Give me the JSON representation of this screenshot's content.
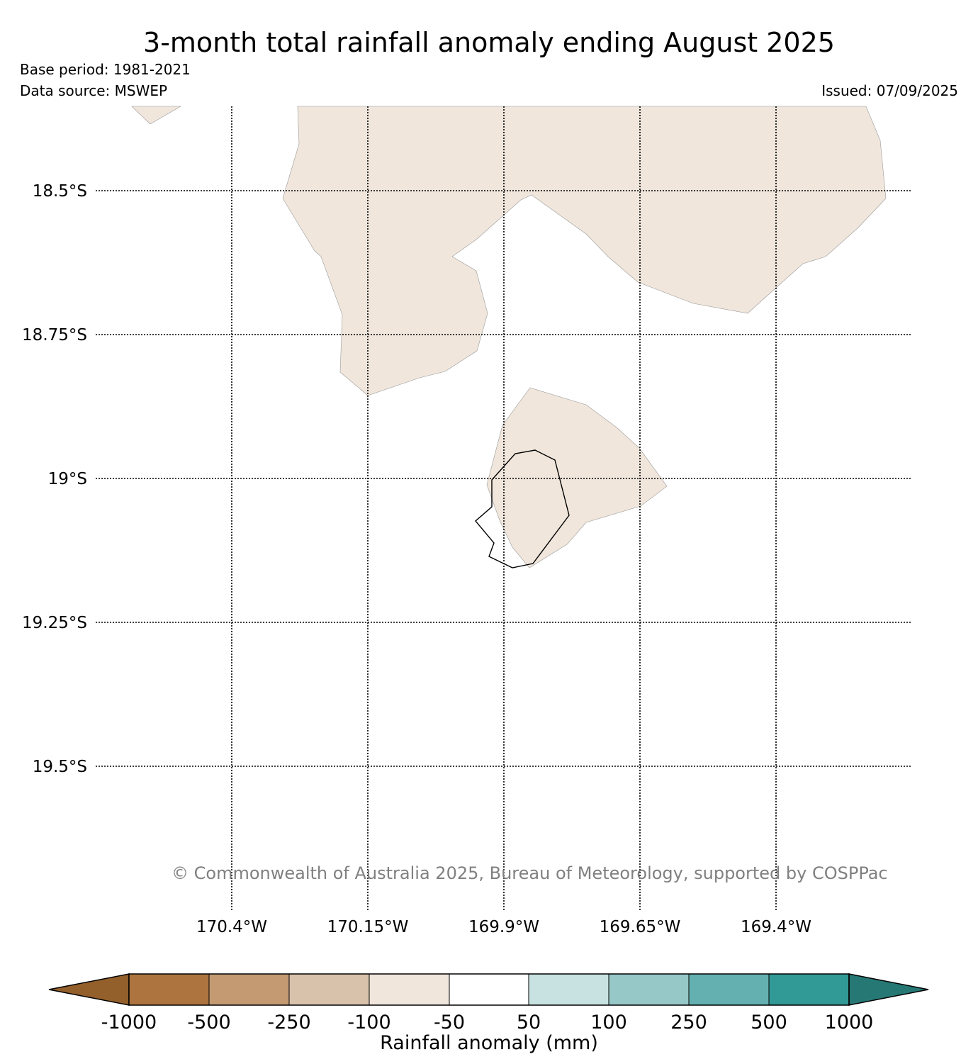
{
  "title": "3-month total rainfall anomaly ending August 2025",
  "base_period": "Base period: 1981-2021",
  "data_source": "Data source: MSWEP",
  "issued": "Issued: 07/09/2025",
  "copyright": "© Commonwealth of Australia 2025, Bureau of Meteorology, supported by COSPPac",
  "map": {
    "lat_labels": [
      "18.5°S",
      "18.75°S",
      "19°S",
      "19.25°S",
      "19.5°S"
    ],
    "lon_labels": [
      "170.4°W",
      "170.15°W",
      "169.9°W",
      "169.65°W",
      "169.4°W"
    ],
    "land_fill_color": "#f0e6dc",
    "land_fill_category": "-100 to -50"
  },
  "colorbar": {
    "label": "Rainfall anomaly (mm)",
    "ticks": [
      "-1000",
      "-500",
      "-250",
      "-100",
      "-50",
      "50",
      "100",
      "250",
      "500",
      "1000"
    ],
    "extend_low_color": "#935f2a",
    "extend_high_color": "#267875",
    "colors": [
      "#ad743f",
      "#c39a72",
      "#d9c2ab",
      "#f0e6dc",
      "#ffffff",
      "#c8e2e2",
      "#96c8c8",
      "#64b0b0",
      "#319996"
    ]
  }
}
